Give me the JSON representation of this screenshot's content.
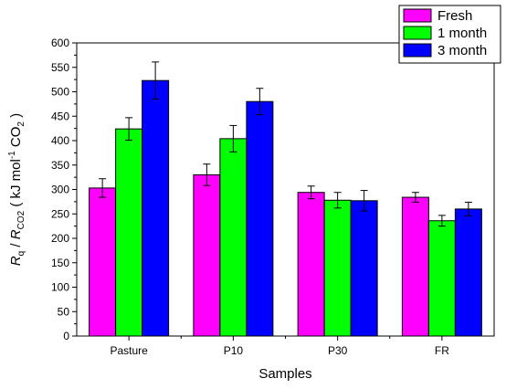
{
  "chart_data": {
    "type": "bar",
    "xlabel": "Samples",
    "ylabel": {
      "parts": [
        {
          "text": "R",
          "style": "italic"
        },
        {
          "text": "q",
          "style": "sub"
        },
        {
          "text": " / ",
          "style": "normal"
        },
        {
          "text": "R",
          "style": "italic"
        },
        {
          "text": "CO2",
          "style": "sub"
        },
        {
          "text": " ( kJ mol",
          "style": "normal"
        },
        {
          "text": "-1",
          "style": "sup"
        },
        {
          "text": " CO",
          "style": "normal"
        },
        {
          "text": "2",
          "style": "sub"
        },
        {
          "text": " )",
          "style": "normal"
        }
      ]
    },
    "ylim": [
      0,
      600
    ],
    "yticks": [
      0,
      50,
      100,
      150,
      200,
      250,
      300,
      350,
      400,
      450,
      500,
      550,
      600
    ],
    "categories": [
      "Pasture",
      "P10",
      "P30",
      "FR"
    ],
    "legend_position": "top-right",
    "series": [
      {
        "name": "Fresh",
        "color": "#ff00ff",
        "values": [
          303,
          330,
          294,
          284
        ],
        "errors": [
          19,
          22,
          13,
          10
        ]
      },
      {
        "name": "1 month",
        "color": "#00ff00",
        "values": [
          424,
          404,
          278,
          236
        ],
        "errors": [
          23,
          27,
          16,
          11
        ]
      },
      {
        "name": "3 month",
        "color": "#0000ff",
        "values": [
          523,
          480,
          277,
          260
        ],
        "errors": [
          38,
          27,
          21,
          14
        ]
      }
    ]
  }
}
